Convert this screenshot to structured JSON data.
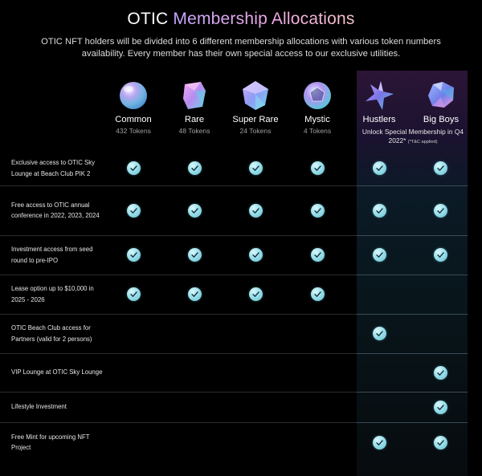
{
  "header": {
    "title_part1": "OTIC ",
    "title_part2": "Membership Allocations",
    "subtitle": "OTIC NFT holders will be divided into 6 different membership allocations with various token numbers availability. Every member has their own special access to our exclusive utilities."
  },
  "colors": {
    "background": "#000000",
    "check": "#8fd9e6",
    "title_gradient_start": "#c9a7ff",
    "title_gradient_end": "#f7c3c9"
  },
  "tiers": [
    {
      "name": "Common",
      "tokens": "432 Tokens",
      "icon": "sphere-gem-icon"
    },
    {
      "name": "Rare",
      "tokens": "48 Tokens",
      "icon": "twisted-cube-gem-icon"
    },
    {
      "name": "Super Rare",
      "tokens": "24 Tokens",
      "icon": "diamond-gem-icon"
    },
    {
      "name": "Mystic",
      "tokens": "4 Tokens",
      "icon": "dodecahedron-gem-icon"
    },
    {
      "name": "Hustlers",
      "tokens": "",
      "icon": "star-crystal-icon"
    },
    {
      "name": "Big Boys",
      "tokens": "",
      "icon": "crystal-cluster-icon"
    }
  ],
  "premium_note": {
    "text": "Unlock Special Membership in Q4 2022*",
    "footnote": "(*T&C applied)"
  },
  "benefits": [
    {
      "label": "Exclusive access to OTIC Sky Lounge at Beach Club PIK 2",
      "access": [
        true,
        true,
        true,
        true,
        true,
        true
      ]
    },
    {
      "label": "Free access to OTIC annual conference in 2022, 2023, 2024",
      "access": [
        true,
        true,
        true,
        true,
        true,
        true
      ]
    },
    {
      "label": "Investment access from seed round to pre-IPO",
      "access": [
        true,
        true,
        true,
        true,
        true,
        true
      ]
    },
    {
      "label": "Lease option up to $10,000 in 2025 - 2026",
      "access": [
        true,
        true,
        true,
        true,
        false,
        false
      ]
    },
    {
      "label": "OTIC Beach Club access for Partners (valid for 2 persons)",
      "access": [
        false,
        false,
        false,
        false,
        true,
        false
      ]
    },
    {
      "label": "VIP Lounge at OTIC Sky Lounge",
      "access": [
        false,
        false,
        false,
        false,
        false,
        true
      ]
    },
    {
      "label": "Lifestyle Investment",
      "access": [
        false,
        false,
        false,
        false,
        false,
        true
      ]
    },
    {
      "label": "Free Mint for upcoming NFT Project",
      "access": [
        false,
        false,
        false,
        false,
        true,
        true
      ]
    }
  ]
}
